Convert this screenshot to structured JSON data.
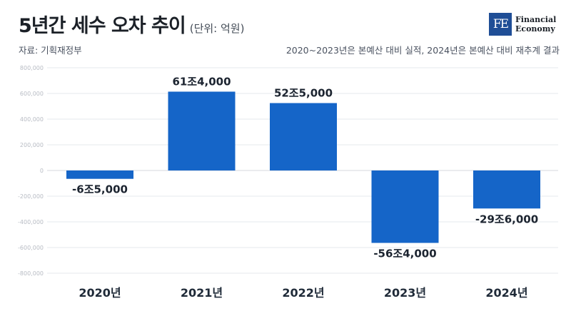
{
  "header": {
    "title": "5년간 세수 오차 추이",
    "unit": "(단위: 억원)",
    "source": "자료: 기획재정부",
    "note": "2020~2023년은 본예산 대비 실적, 2024년은 본예산 대비 재추계 결과"
  },
  "logo": {
    "mark": "FE",
    "line1": "Financial",
    "line2": "Economy"
  },
  "colors": {
    "bar": "#1565c8",
    "grid": "#e6e8ec",
    "tick": "#b8bcc4",
    "label": "#1c2430"
  },
  "chart_data": {
    "type": "bar",
    "categories": [
      "2020년",
      "2021년",
      "2022년",
      "2023년",
      "2024년"
    ],
    "values": [
      -65000,
      614000,
      525000,
      -564000,
      -296000
    ],
    "data_labels": [
      "-6조5,000",
      "61조4,000",
      "52조5,000",
      "-56조4,000",
      "-29조6,000"
    ],
    "yticks": [
      {
        "value": 800000,
        "label": "800,000"
      },
      {
        "value": 600000,
        "label": "600,000"
      },
      {
        "value": 400000,
        "label": "400,000"
      },
      {
        "value": 200000,
        "label": "200,000"
      },
      {
        "value": 0,
        "label": "0"
      },
      {
        "value": -200000,
        "label": "-200,000"
      },
      {
        "value": -400000,
        "label": "-400,000"
      },
      {
        "value": -600000,
        "label": "-600,000"
      },
      {
        "value": -800000,
        "label": "-800,000"
      }
    ],
    "ylim": [
      -800000,
      800000
    ],
    "grid": true,
    "xlabel": "",
    "ylabel": ""
  }
}
